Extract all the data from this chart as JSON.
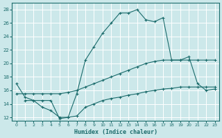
{
  "xlabel": "Humidex (Indice chaleur)",
  "xlim": [
    -0.5,
    23.5
  ],
  "ylim": [
    11.5,
    29
  ],
  "yticks": [
    12,
    14,
    16,
    18,
    20,
    22,
    24,
    26,
    28
  ],
  "xticks": [
    0,
    1,
    2,
    3,
    4,
    5,
    6,
    7,
    8,
    9,
    10,
    11,
    12,
    13,
    14,
    15,
    16,
    17,
    18,
    19,
    20,
    21,
    22,
    23
  ],
  "bg_color": "#cce8ea",
  "grid_color": "#aacfd2",
  "line_color": "#1a6b6b",
  "line1_x": [
    0,
    1,
    2,
    3,
    4,
    5,
    6,
    7,
    8,
    9,
    10,
    11,
    12,
    13,
    14,
    15,
    16,
    17,
    18,
    19,
    20,
    21,
    22,
    23
  ],
  "line1_y": [
    17.0,
    15.0,
    14.5,
    13.5,
    13.0,
    12.0,
    12.0,
    15.5,
    20.5,
    22.5,
    24.5,
    26.0,
    27.5,
    27.5,
    28.0,
    26.5,
    26.2,
    26.8,
    20.5,
    20.5,
    21.0,
    17.0,
    16.0,
    16.2
  ],
  "line2_x": [
    0,
    1,
    2,
    3,
    4,
    5,
    6,
    7,
    8,
    9,
    10,
    11,
    12,
    13,
    14,
    15,
    16,
    17,
    18,
    19,
    20,
    21,
    22,
    23
  ],
  "line2_y": [
    15.5,
    15.5,
    15.5,
    15.5,
    15.5,
    15.5,
    15.7,
    16.0,
    16.5,
    17.0,
    17.5,
    18.0,
    18.5,
    19.0,
    19.5,
    20.0,
    20.3,
    20.5,
    20.5,
    20.5,
    20.5,
    20.5,
    20.5,
    20.5
  ],
  "line3_x": [
    1,
    2,
    3,
    4,
    5,
    6,
    7,
    8,
    9,
    10,
    11,
    12,
    13,
    14,
    15,
    16,
    17,
    18,
    19,
    20,
    21,
    22,
    23
  ],
  "line3_y": [
    14.5,
    14.5,
    14.5,
    14.5,
    11.8,
    12.0,
    12.2,
    13.5,
    14.0,
    14.5,
    14.8,
    15.0,
    15.3,
    15.5,
    15.8,
    16.0,
    16.2,
    16.3,
    16.5,
    16.5,
    16.5,
    16.5,
    16.5
  ]
}
